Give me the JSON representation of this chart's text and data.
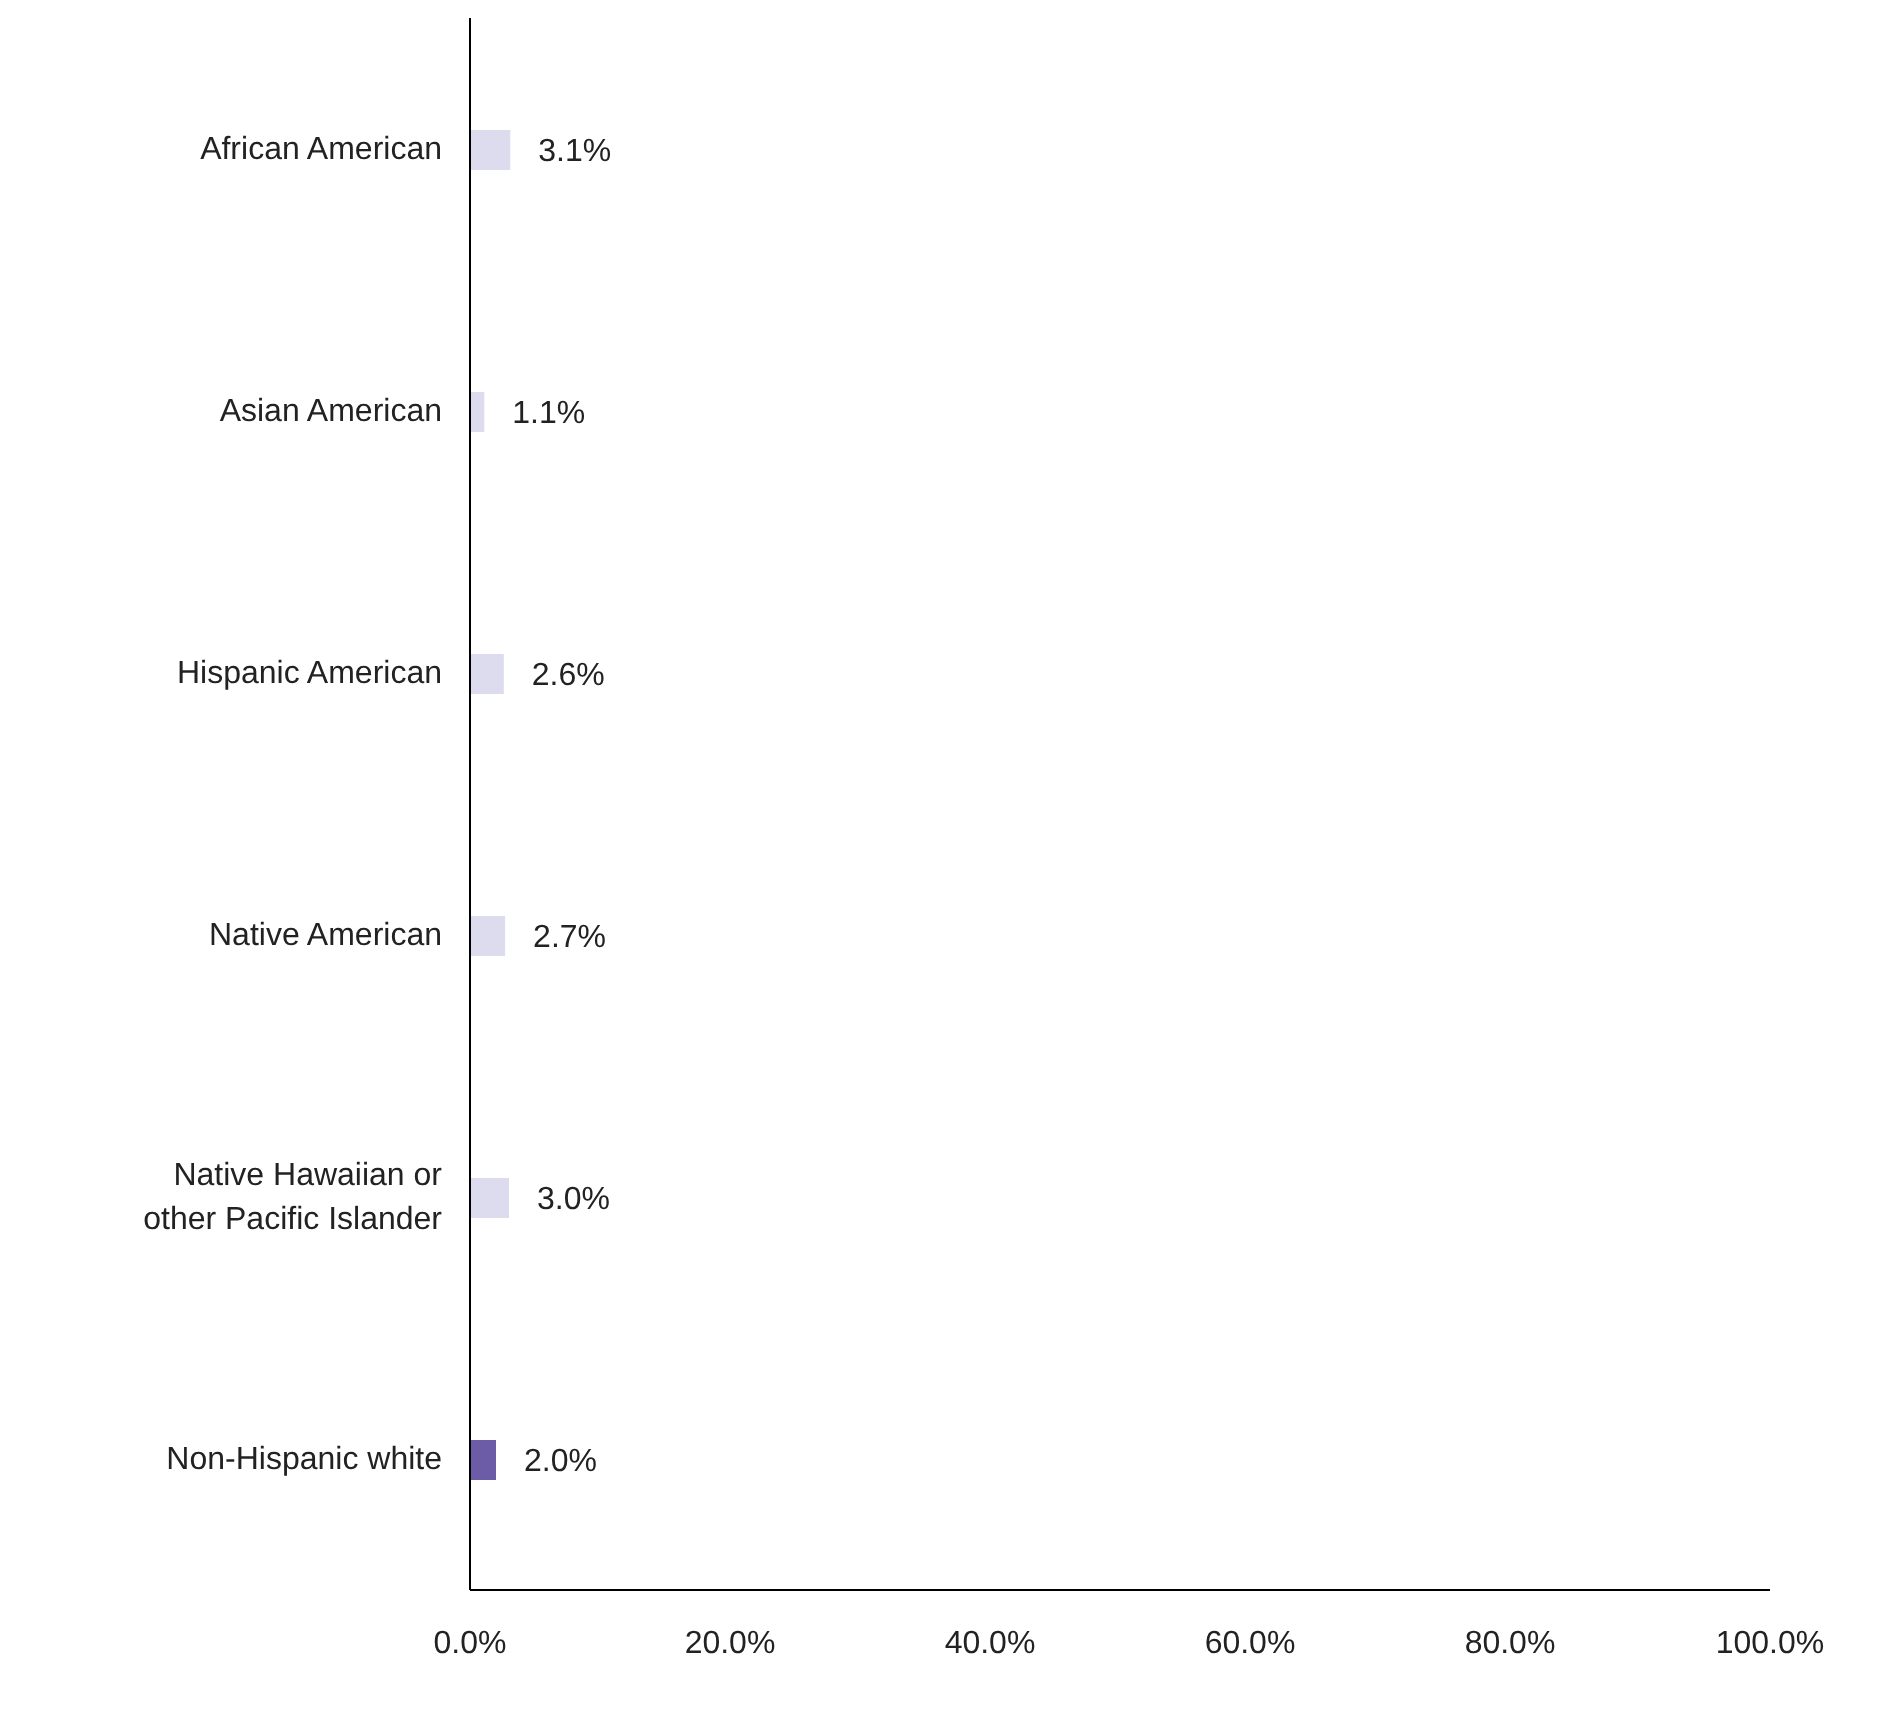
{
  "chart_data": {
    "type": "bar",
    "orientation": "horizontal",
    "categories": [
      "African American",
      "Asian American",
      "Hispanic American",
      "Native American",
      "Native Hawaiian or other Pacific Islander",
      "Non-Hispanic white"
    ],
    "values": [
      3.1,
      1.1,
      2.6,
      2.7,
      3.0,
      2.0
    ],
    "colors": [
      "#dddbee",
      "#dddbee",
      "#dddbee",
      "#dddbee",
      "#dddbee",
      "#6c5ba7"
    ],
    "value_labels": [
      "3.1%",
      "1.1%",
      "2.6%",
      "2.7%",
      "3.0%",
      "2.0%"
    ],
    "xlim": [
      0,
      100
    ],
    "xticks": [
      {
        "value": 0,
        "label": "0.0%"
      },
      {
        "value": 20,
        "label": "20.0%"
      },
      {
        "value": 40,
        "label": "40.0%"
      },
      {
        "value": 60,
        "label": "60.0%"
      },
      {
        "value": 80,
        "label": "80.0%"
      },
      {
        "value": 100,
        "label": "100.0%"
      }
    ],
    "grid": false
  }
}
